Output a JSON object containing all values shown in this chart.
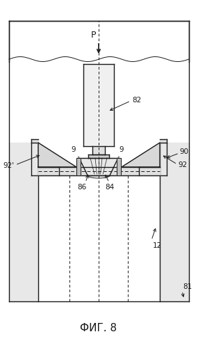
{
  "title": "ФИГ. 8",
  "label_P": "P",
  "label_82": "82",
  "label_9L": "9",
  "label_9R": "9",
  "label_90": "90",
  "label_92": "92",
  "label_92p": "92'",
  "label_86": "86",
  "label_84": "84",
  "label_12": "12",
  "label_81": "81",
  "bg_color": "#ffffff",
  "line_color": "#1a1a1a"
}
